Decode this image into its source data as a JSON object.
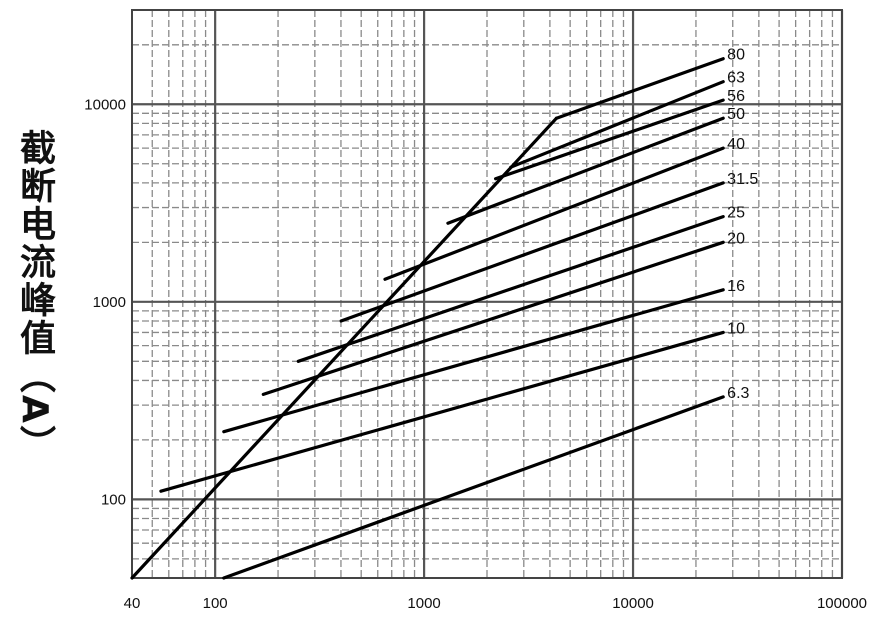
{
  "chart_data": {
    "type": "line",
    "title": "",
    "xlabel": "",
    "ylabel": "截断电流峰值（A）",
    "x_scale": "log",
    "y_scale": "log",
    "xlim": [
      40,
      100000
    ],
    "ylim": [
      40,
      30000
    ],
    "x_ticks": [
      {
        "value": 40,
        "label": "40"
      },
      {
        "value": 100,
        "label": "100"
      },
      {
        "value": 1000,
        "label": "1000"
      },
      {
        "value": 10000,
        "label": "10000"
      },
      {
        "value": 100000,
        "label": "100000"
      }
    ],
    "y_ticks": [
      {
        "value": 100,
        "label": "100"
      },
      {
        "value": 1000,
        "label": "1000"
      },
      {
        "value": 10000,
        "label": "10000"
      }
    ],
    "grid": true,
    "envelope": {
      "name": "",
      "x": [
        40,
        4300
      ],
      "y": [
        40,
        8500
      ]
    },
    "series": [
      {
        "name": "80",
        "x": [
          4300,
          27000
        ],
        "y": [
          8500,
          17000
        ]
      },
      {
        "name": "63",
        "x": [
          2600,
          27000
        ],
        "y": [
          4800,
          13000
        ]
      },
      {
        "name": "56",
        "x": [
          2200,
          27000
        ],
        "y": [
          4200,
          10500
        ]
      },
      {
        "name": "50",
        "x": [
          1300,
          27000
        ],
        "y": [
          2500,
          8500
        ]
      },
      {
        "name": "40",
        "x": [
          650,
          27000
        ],
        "y": [
          1300,
          6000
        ]
      },
      {
        "name": "31.5",
        "x": [
          400,
          27000
        ],
        "y": [
          800,
          4000
        ]
      },
      {
        "name": "25",
        "x": [
          250,
          27000
        ],
        "y": [
          500,
          2700
        ]
      },
      {
        "name": "20",
        "x": [
          170,
          27000
        ],
        "y": [
          340,
          2000
        ]
      },
      {
        "name": "16",
        "x": [
          110,
          27000
        ],
        "y": [
          220,
          1150
        ]
      },
      {
        "name": "10",
        "x": [
          55,
          27000
        ],
        "y": [
          110,
          700
        ]
      },
      {
        "name": "6.3",
        "x": [
          110,
          27000
        ],
        "y": [
          40,
          330
        ]
      }
    ]
  }
}
